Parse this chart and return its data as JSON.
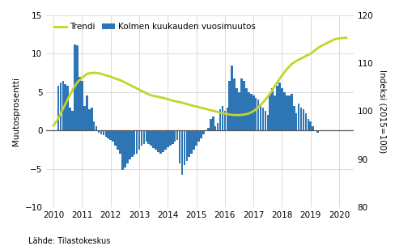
{
  "ylabel_left": "Muutosprosentti",
  "ylabel_right": "Indeksi (2015=100)",
  "source": "Lähde: Tilastokeskus",
  "ylim_left": [
    -10,
    15
  ],
  "ylim_right": [
    80,
    120
  ],
  "yticks_left": [
    -10,
    -5,
    0,
    5,
    10,
    15
  ],
  "yticks_right": [
    80,
    90,
    100,
    110,
    120
  ],
  "bar_color": "#2E75B6",
  "trend_color": "#C5D42A",
  "background_color": "#ffffff",
  "grid_color": "#cccccc",
  "zero_line_color": "#555555",
  "bar_data": [
    0.0,
    -0.1,
    5.8,
    6.2,
    6.5,
    6.0,
    5.8,
    3.0,
    2.5,
    11.2,
    11.1,
    7.0,
    6.5,
    3.2,
    4.5,
    2.8,
    3.0,
    1.2,
    0.5,
    -0.3,
    -0.5,
    -0.6,
    -0.8,
    -1.0,
    -1.2,
    -1.5,
    -2.0,
    -2.5,
    -3.0,
    -5.2,
    -4.8,
    -4.3,
    -3.8,
    -3.5,
    -3.2,
    -3.0,
    -2.5,
    -2.0,
    -1.8,
    -1.5,
    -1.8,
    -2.0,
    -2.3,
    -2.5,
    -2.8,
    -3.0,
    -2.8,
    -2.5,
    -2.2,
    -2.0,
    -1.8,
    -1.5,
    -1.3,
    -4.3,
    -5.8,
    -4.5,
    -4.0,
    -3.5,
    -3.0,
    -2.5,
    -2.0,
    -1.5,
    -1.0,
    -0.5,
    0.0,
    0.3,
    1.5,
    1.8,
    0.5,
    1.0,
    2.8,
    3.2,
    2.5,
    3.0,
    6.5,
    8.5,
    6.8,
    5.5,
    5.0,
    6.8,
    6.5,
    5.5,
    5.0,
    4.8,
    4.5,
    4.2,
    4.0,
    3.5,
    3.0,
    2.5,
    2.0,
    4.8,
    5.5,
    4.5,
    5.8,
    6.2,
    5.5,
    5.0,
    4.5,
    4.5,
    4.8,
    3.2,
    2.2,
    3.5,
    3.0,
    2.8,
    2.2,
    1.5,
    1.2,
    0.5,
    0.0,
    -0.3
  ],
  "trend_x": [
    2010.0,
    2010.17,
    2010.33,
    2010.5,
    2010.67,
    2010.83,
    2011.0,
    2011.17,
    2011.33,
    2011.5,
    2011.67,
    2011.83,
    2012.0,
    2012.17,
    2012.33,
    2012.5,
    2012.67,
    2012.83,
    2013.0,
    2013.17,
    2013.33,
    2013.5,
    2013.67,
    2013.83,
    2014.0,
    2014.17,
    2014.33,
    2014.5,
    2014.67,
    2014.83,
    2015.0,
    2015.17,
    2015.33,
    2015.5,
    2015.67,
    2015.83,
    2016.0,
    2016.17,
    2016.33,
    2016.5,
    2016.67,
    2016.83,
    2017.0,
    2017.17,
    2017.33,
    2017.5,
    2017.67,
    2017.83,
    2018.0,
    2018.17,
    2018.33,
    2018.5,
    2018.67,
    2018.83,
    2019.0,
    2019.17,
    2019.33,
    2019.5,
    2019.67,
    2019.83,
    2020.0,
    2020.17,
    2020.25
  ],
  "trend_y": [
    97.0,
    98.5,
    100.5,
    102.5,
    104.5,
    106.0,
    107.0,
    107.8,
    108.0,
    108.0,
    107.8,
    107.5,
    107.2,
    106.8,
    106.5,
    106.0,
    105.5,
    105.0,
    104.5,
    104.0,
    103.5,
    103.2,
    103.0,
    102.8,
    102.5,
    102.2,
    102.0,
    101.8,
    101.5,
    101.2,
    101.0,
    100.7,
    100.5,
    100.2,
    100.0,
    99.7,
    99.5,
    99.3,
    99.2,
    99.2,
    99.3,
    99.5,
    100.0,
    100.8,
    101.8,
    103.0,
    104.5,
    106.0,
    107.5,
    108.8,
    109.8,
    110.5,
    111.0,
    111.5,
    112.0,
    112.8,
    113.5,
    114.0,
    114.5,
    115.0,
    115.2,
    115.3,
    115.3
  ],
  "xtick_years": [
    2010,
    2011,
    2012,
    2013,
    2014,
    2015,
    2016,
    2017,
    2018,
    2019,
    2020
  ],
  "xlim": [
    2009.75,
    2020.5
  ]
}
